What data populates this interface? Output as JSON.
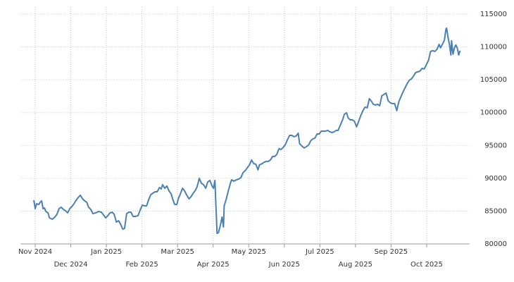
{
  "chart_data": {
    "type": "line",
    "grid": true,
    "xlim": [
      -0.4,
      12.2
    ],
    "ylim": [
      80000,
      115000
    ],
    "xticks": [
      {
        "value": 0,
        "label": "Nov 2024"
      },
      {
        "value": 1,
        "label": "Dec 2024"
      },
      {
        "value": 2,
        "label": "Jan 2025"
      },
      {
        "value": 3,
        "label": "Feb 2025"
      },
      {
        "value": 4,
        "label": "Mar 2025"
      },
      {
        "value": 5,
        "label": "Apr 2025"
      },
      {
        "value": 6,
        "label": "May 2025"
      },
      {
        "value": 7,
        "label": "Jun 2025"
      },
      {
        "value": 8,
        "label": "Jul 2025"
      },
      {
        "value": 9,
        "label": "Aug 2025"
      },
      {
        "value": 10,
        "label": "Sep 2025"
      },
      {
        "value": 11,
        "label": "Oct 2025"
      }
    ],
    "yticks": [
      80000,
      85000,
      90000,
      95000,
      100000,
      105000,
      110000,
      115000
    ],
    "x": [
      -0.04,
      0,
      0.04,
      0.1,
      0.14,
      0.18,
      0.22,
      0.26,
      0.3,
      0.36,
      0.4,
      0.48,
      0.55,
      0.61,
      0.67,
      0.73,
      0.79,
      0.85,
      0.91,
      0.97,
      1.03,
      1.09,
      1.15,
      1.21,
      1.27,
      1.33,
      1.39,
      1.45,
      1.5,
      1.56,
      1.62,
      1.7,
      1.78,
      1.86,
      1.92,
      1.98,
      2.04,
      2.1,
      2.16,
      2.22,
      2.28,
      2.34,
      2.4,
      2.46,
      2.51,
      2.57,
      2.63,
      2.69,
      2.75,
      2.81,
      2.89,
      2.95,
      3.01,
      3.07,
      3.13,
      3.19,
      3.25,
      3.31,
      3.37,
      3.43,
      3.49,
      3.54,
      3.58,
      3.64,
      3.7,
      3.76,
      3.82,
      3.86,
      3.92,
      3.98,
      4.02,
      4.08,
      4.14,
      4.2,
      4.26,
      4.32,
      4.38,
      4.44,
      4.5,
      4.55,
      4.61,
      4.67,
      4.73,
      4.79,
      4.85,
      4.91,
      4.97,
      5.01,
      5.05,
      5.11,
      5.15,
      5.21,
      5.25,
      5.29,
      5.31,
      5.37,
      5.43,
      5.49,
      5.52,
      5.58,
      5.66,
      5.72,
      5.78,
      5.84,
      5.9,
      5.96,
      6.02,
      6.08,
      6.14,
      6.2,
      6.26,
      6.3,
      6.38,
      6.44,
      6.5,
      6.55,
      6.61,
      6.67,
      6.73,
      6.79,
      6.85,
      6.91,
      6.97,
      7.03,
      7.09,
      7.15,
      7.21,
      7.27,
      7.33,
      7.39,
      7.43,
      7.49,
      7.56,
      7.62,
      7.68,
      7.74,
      7.8,
      7.86,
      7.92,
      7.98,
      8.04,
      8.1,
      8.16,
      8.22,
      8.28,
      8.34,
      8.4,
      8.46,
      8.51,
      8.57,
      8.63,
      8.69,
      8.75,
      8.79,
      8.85,
      8.91,
      8.97,
      9.03,
      9.09,
      9.15,
      9.21,
      9.27,
      9.33,
      9.39,
      9.45,
      9.5,
      9.56,
      9.62,
      9.68,
      9.74,
      9.8,
      9.86,
      9.92,
      9.98,
      10.04,
      10.1,
      10.16,
      10.22,
      10.28,
      10.34,
      10.4,
      10.46,
      10.51,
      10.57,
      10.63,
      10.69,
      10.75,
      10.81,
      10.87,
      10.93,
      10.99,
      11.05,
      11.11,
      11.17,
      11.23,
      11.29,
      11.35,
      11.39,
      11.45,
      11.5,
      11.54,
      11.56,
      11.6,
      11.64,
      11.68,
      11.7,
      11.74,
      11.78,
      11.82,
      11.86,
      11.9,
      11.94
    ],
    "series": [
      {
        "color": "#4a80b4",
        "values": [
          86660,
          85370,
          86120,
          86010,
          86340,
          86550,
          85370,
          85480,
          84940,
          84730,
          83970,
          83760,
          84080,
          84510,
          85370,
          85590,
          85260,
          85050,
          84730,
          85370,
          85690,
          86120,
          86660,
          87090,
          87410,
          86870,
          86550,
          86340,
          85590,
          85260,
          84620,
          84730,
          84940,
          84830,
          84400,
          83970,
          84300,
          84730,
          84830,
          84510,
          83330,
          83540,
          83010,
          82250,
          82360,
          84620,
          84830,
          84830,
          84190,
          84190,
          84300,
          85160,
          85910,
          85800,
          85800,
          86770,
          87520,
          87730,
          87950,
          87950,
          88590,
          88380,
          89020,
          88480,
          88810,
          88060,
          87630,
          86870,
          86010,
          86010,
          86870,
          87630,
          88480,
          88060,
          87410,
          86870,
          87200,
          87730,
          88160,
          88700,
          89990,
          89240,
          89020,
          88480,
          89450,
          89670,
          88810,
          88480,
          89670,
          81610,
          81720,
          83010,
          84080,
          82580,
          85800,
          86870,
          88160,
          89340,
          89770,
          89560,
          89770,
          89880,
          90100,
          90850,
          91170,
          91600,
          92030,
          92780,
          92240,
          92140,
          91280,
          92030,
          92240,
          92460,
          92570,
          92570,
          92780,
          93320,
          93320,
          93640,
          94500,
          94390,
          94710,
          95140,
          95900,
          96540,
          96540,
          96330,
          96430,
          96860,
          95250,
          94930,
          94610,
          94820,
          95040,
          95680,
          96000,
          96110,
          96750,
          96750,
          97180,
          97180,
          97180,
          97290,
          97080,
          96970,
          97080,
          97290,
          97290,
          98040,
          98800,
          99760,
          99980,
          99230,
          98900,
          98900,
          98690,
          97830,
          98690,
          99550,
          100300,
          100840,
          100730,
          102120,
          101700,
          101270,
          101160,
          101270,
          101050,
          102550,
          102770,
          102980,
          101800,
          101480,
          101370,
          101370,
          100300,
          101700,
          102450,
          103200,
          103840,
          104490,
          104920,
          105130,
          105560,
          106100,
          106210,
          106310,
          106740,
          106640,
          107280,
          107920,
          109320,
          109430,
          109320,
          109640,
          110390,
          109860,
          110500,
          111040,
          112650,
          112860,
          111470,
          110390,
          108780,
          110930,
          108890,
          109860,
          110290,
          109860,
          108780,
          109430
        ]
      }
    ]
  }
}
